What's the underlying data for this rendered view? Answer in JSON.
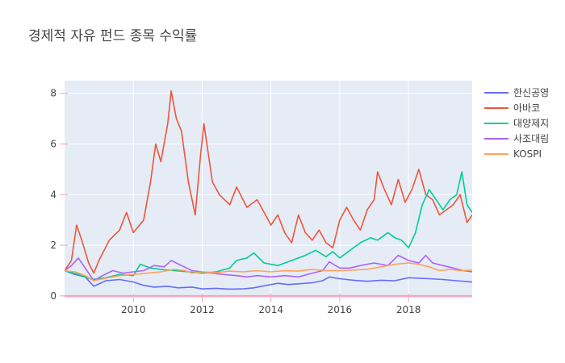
{
  "title": "경제적 자유 펀드 종목 수익률",
  "chart_data": {
    "type": "line",
    "title": "경제적 자유 펀드 종목 수익률",
    "xlabel": "",
    "ylabel": "",
    "xlim": [
      2008.0,
      2019.85
    ],
    "ylim": [
      -0.1,
      8.5
    ],
    "x_ticks": [
      2010,
      2012,
      2014,
      2016,
      2018
    ],
    "y_ticks": [
      0,
      2,
      4,
      6,
      8
    ],
    "grid": true,
    "legend_position": "top-right",
    "colors": {
      "plot_background": "#e5ecf6",
      "grid": "#ffffff",
      "zero_line": "#f5a0b8"
    },
    "series": [
      {
        "name": "한신공영",
        "color": "#636efa",
        "x": [
          2008.0,
          2008.3,
          2008.6,
          2008.85,
          2009.2,
          2009.6,
          2010.0,
          2010.3,
          2010.6,
          2011.0,
          2011.3,
          2011.7,
          2012.0,
          2012.4,
          2012.8,
          2013.2,
          2013.5,
          2013.8,
          2014.2,
          2014.5,
          2014.8,
          2015.2,
          2015.5,
          2015.7,
          2016.0,
          2016.4,
          2016.8,
          2017.2,
          2017.6,
          2018.0,
          2018.3,
          2018.6,
          2019.0,
          2019.4,
          2019.85
        ],
        "y": [
          1.0,
          0.85,
          0.75,
          0.38,
          0.6,
          0.65,
          0.55,
          0.42,
          0.35,
          0.38,
          0.32,
          0.35,
          0.28,
          0.3,
          0.27,
          0.28,
          0.32,
          0.4,
          0.5,
          0.45,
          0.48,
          0.52,
          0.6,
          0.75,
          0.68,
          0.62,
          0.58,
          0.62,
          0.6,
          0.72,
          0.7,
          0.68,
          0.65,
          0.6,
          0.55
        ]
      },
      {
        "name": "아바코",
        "color": "#ef553b",
        "x": [
          2008.0,
          2008.2,
          2008.35,
          2008.5,
          2008.7,
          2008.85,
          2009.0,
          2009.3,
          2009.6,
          2009.8,
          2010.0,
          2010.3,
          2010.5,
          2010.65,
          2010.8,
          2011.0,
          2011.1,
          2011.25,
          2011.4,
          2011.6,
          2011.8,
          2011.95,
          2012.05,
          2012.3,
          2012.5,
          2012.8,
          2013.0,
          2013.3,
          2013.6,
          2013.8,
          2014.0,
          2014.2,
          2014.4,
          2014.6,
          2014.8,
          2015.0,
          2015.2,
          2015.4,
          2015.6,
          2015.8,
          2016.0,
          2016.2,
          2016.4,
          2016.6,
          2016.8,
          2017.0,
          2017.1,
          2017.3,
          2017.5,
          2017.7,
          2017.9,
          2018.1,
          2018.3,
          2018.5,
          2018.7,
          2018.9,
          2019.1,
          2019.3,
          2019.5,
          2019.7,
          2019.85
        ],
        "y": [
          1.0,
          1.4,
          2.8,
          2.2,
          1.3,
          0.9,
          1.4,
          2.2,
          2.6,
          3.3,
          2.5,
          3.0,
          4.5,
          6.0,
          5.3,
          6.8,
          8.1,
          7.0,
          6.5,
          4.5,
          3.2,
          5.5,
          6.8,
          4.5,
          4.0,
          3.6,
          4.3,
          3.5,
          3.8,
          3.3,
          2.8,
          3.2,
          2.5,
          2.1,
          3.2,
          2.5,
          2.2,
          2.6,
          2.1,
          1.9,
          3.0,
          3.5,
          3.0,
          2.6,
          3.4,
          3.8,
          4.9,
          4.2,
          3.6,
          4.6,
          3.7,
          4.2,
          5.0,
          4.0,
          3.8,
          3.2,
          3.4,
          3.6,
          4.0,
          2.9,
          3.2
        ]
      },
      {
        "name": "대양제지",
        "color": "#00cc96",
        "x": [
          2008.0,
          2008.4,
          2008.8,
          2009.2,
          2009.6,
          2010.0,
          2010.2,
          2010.5,
          2010.8,
          2011.2,
          2011.6,
          2012.0,
          2012.4,
          2012.8,
          2013.0,
          2013.3,
          2013.5,
          2013.8,
          2014.2,
          2014.6,
          2014.8,
          2015.0,
          2015.3,
          2015.6,
          2015.8,
          2016.0,
          2016.3,
          2016.6,
          2016.9,
          2017.1,
          2017.4,
          2017.6,
          2017.8,
          2018.0,
          2018.2,
          2018.4,
          2018.6,
          2018.8,
          2019.0,
          2019.2,
          2019.4,
          2019.55,
          2019.7,
          2019.85
        ],
        "y": [
          1.0,
          0.85,
          0.65,
          0.72,
          0.85,
          0.8,
          1.25,
          1.1,
          1.05,
          1.0,
          0.95,
          0.9,
          0.95,
          1.1,
          1.4,
          1.5,
          1.7,
          1.3,
          1.2,
          1.4,
          1.5,
          1.6,
          1.8,
          1.55,
          1.75,
          1.5,
          1.8,
          2.1,
          2.3,
          2.2,
          2.5,
          2.3,
          2.2,
          1.9,
          2.5,
          3.6,
          4.2,
          3.8,
          3.4,
          3.8,
          4.0,
          4.9,
          3.6,
          3.3
        ]
      },
      {
        "name": "사조대림",
        "color": "#ab63fa",
        "x": [
          2008.0,
          2008.2,
          2008.4,
          2008.6,
          2008.85,
          2009.1,
          2009.4,
          2009.7,
          2010.0,
          2010.3,
          2010.6,
          2010.9,
          2011.1,
          2011.4,
          2011.7,
          2012.0,
          2012.3,
          2012.6,
          2013.0,
          2013.3,
          2013.6,
          2014.0,
          2014.4,
          2014.8,
          2015.2,
          2015.5,
          2015.7,
          2016.0,
          2016.3,
          2016.6,
          2017.0,
          2017.4,
          2017.7,
          2018.0,
          2018.3,
          2018.5,
          2018.7,
          2019.0,
          2019.3,
          2019.6,
          2019.85
        ],
        "y": [
          1.0,
          1.2,
          1.5,
          1.1,
          0.6,
          0.8,
          1.0,
          0.9,
          0.95,
          1.0,
          1.2,
          1.15,
          1.4,
          1.2,
          1.0,
          0.95,
          0.9,
          0.85,
          0.8,
          0.75,
          0.8,
          0.75,
          0.8,
          0.75,
          0.9,
          1.0,
          1.35,
          1.1,
          1.1,
          1.2,
          1.3,
          1.2,
          1.6,
          1.4,
          1.3,
          1.6,
          1.3,
          1.2,
          1.1,
          1.0,
          0.95
        ]
      },
      {
        "name": "KOSPI",
        "color": "#ffa15a",
        "x": [
          2008.0,
          2008.3,
          2008.6,
          2008.85,
          2009.2,
          2009.6,
          2010.0,
          2010.4,
          2010.8,
          2011.2,
          2011.5,
          2011.7,
          2012.0,
          2012.4,
          2012.8,
          2013.2,
          2013.6,
          2014.0,
          2014.4,
          2014.8,
          2015.2,
          2015.6,
          2016.0,
          2016.4,
          2016.8,
          2017.2,
          2017.6,
          2018.0,
          2018.3,
          2018.6,
          2018.9,
          2019.2,
          2019.5,
          2019.85
        ],
        "y": [
          1.0,
          0.95,
          0.8,
          0.6,
          0.7,
          0.8,
          0.85,
          0.9,
          0.95,
          1.05,
          1.0,
          0.9,
          0.95,
          0.92,
          0.98,
          0.95,
          1.0,
          0.95,
          1.0,
          0.98,
          1.05,
          1.0,
          1.0,
          1.02,
          1.05,
          1.15,
          1.25,
          1.3,
          1.25,
          1.15,
          1.0,
          1.05,
          1.0,
          1.02
        ]
      }
    ]
  }
}
